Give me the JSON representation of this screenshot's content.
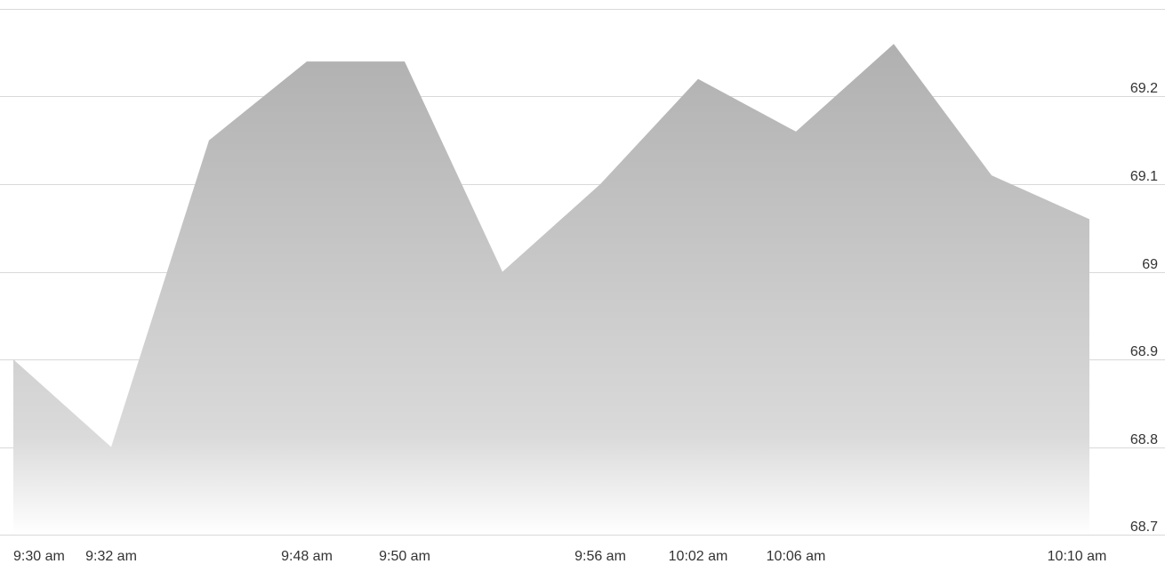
{
  "chart_data": {
    "type": "area",
    "title": "",
    "xlabel": "",
    "ylabel": "",
    "x": [
      "9:30 am",
      "9:32 am",
      "",
      "9:48 am",
      "9:50 am",
      "",
      "9:56 am",
      "10:02 am",
      "10:06 am",
      "",
      "",
      "10:10 am"
    ],
    "x_tick_labels": [
      "9:30 am",
      "9:32 am",
      "9:48 am",
      "9:50 am",
      "9:56 am",
      "10:02 am",
      "10:06 am",
      "10:10 am"
    ],
    "values": [
      68.9,
      68.8,
      69.15,
      69.24,
      69.24,
      69.0,
      69.1,
      69.22,
      69.16,
      69.26,
      69.11,
      69.06
    ],
    "ylim": [
      68.7,
      69.3
    ],
    "y_ticks": [
      68.7,
      68.8,
      68.9,
      69,
      69.1,
      69.2
    ],
    "grid": true,
    "legend": "none",
    "colors": {
      "fill_top": "#b0b0b0",
      "fill_bottom": "#ffffff",
      "grid": "#d9d9d9",
      "text": "#333333"
    }
  }
}
